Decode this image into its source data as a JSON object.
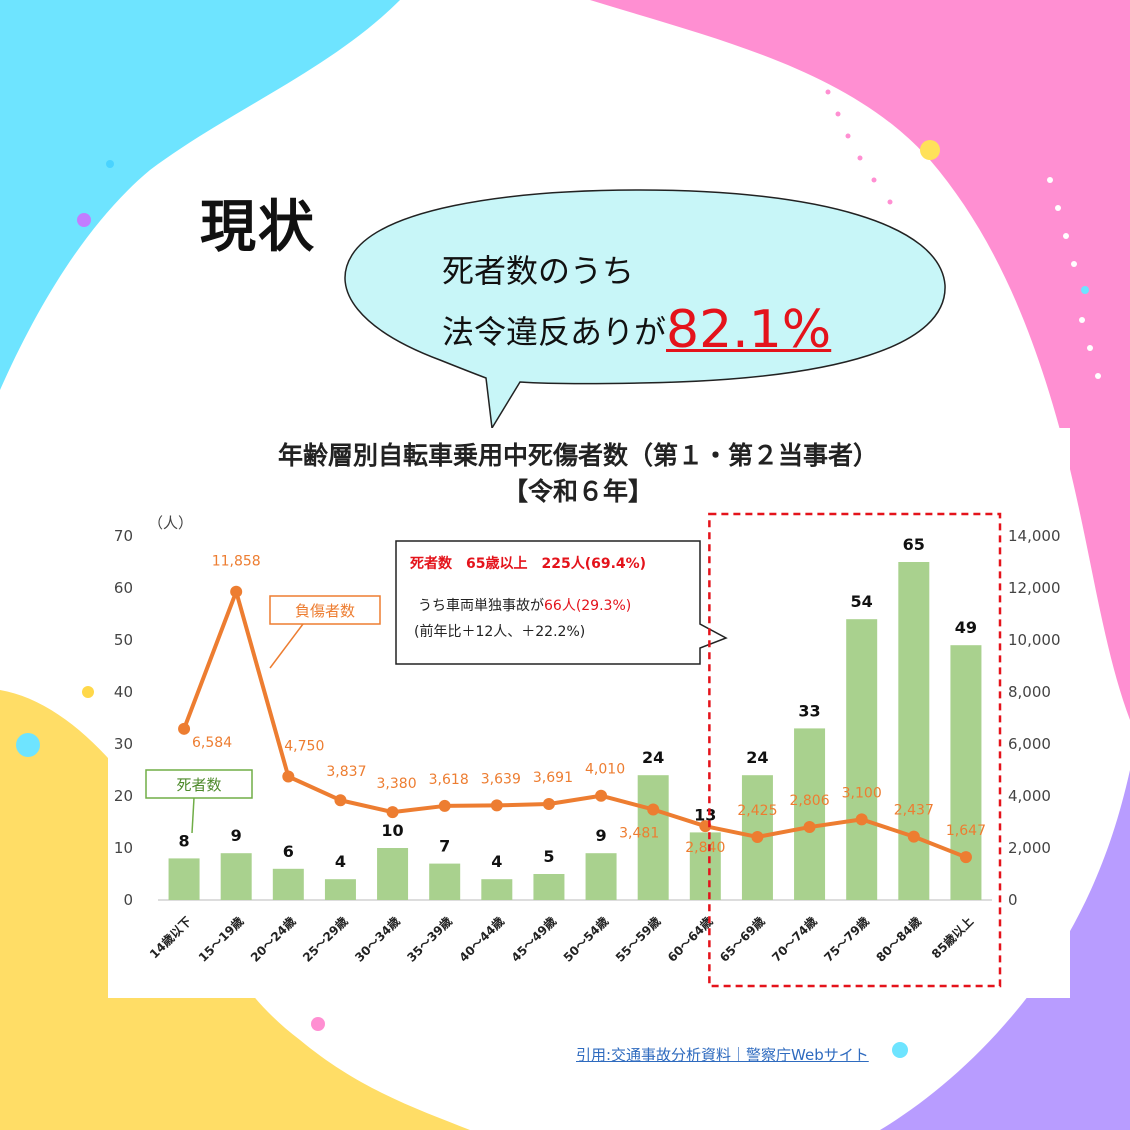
{
  "heading": "現状",
  "bubble": {
    "line1": "死者数のうち",
    "line2_prefix": "法令違反ありが",
    "line2_value": "82.1%"
  },
  "source": "引用:交通事故分析資料｜警察庁Webサイト",
  "colors": {
    "bar": "#a9d18e",
    "line": "#ed7d31",
    "highlight": "#e4131b",
    "bubble_fill": "#c8f6f8"
  },
  "chart_data": {
    "type": "bar",
    "title": "年齢層別自転車乗用中死傷者数（第１・第２当事者）",
    "subtitle": "【令和６年】",
    "ylabel": "（人）",
    "ylim": [
      0,
      70
    ],
    "y2lim": [
      0,
      14000
    ],
    "yticks": [
      "0",
      "10",
      "20",
      "30",
      "40",
      "50",
      "60",
      "70"
    ],
    "y2ticks": [
      "0",
      "2,000",
      "4,000",
      "6,000",
      "8,000",
      "10,000",
      "12,000",
      "14,000"
    ],
    "categories": [
      "14歳以下",
      "15～19歳",
      "20～24歳",
      "25～29歳",
      "30～34歳",
      "35～39歳",
      "40～44歳",
      "45～49歳",
      "50～54歳",
      "55～59歳",
      "60～64歳",
      "65～69歳",
      "70～74歳",
      "75～79歳",
      "80～84歳",
      "85歳以上"
    ],
    "series": [
      {
        "name": "死者数",
        "type": "bar",
        "axis": "left",
        "values": [
          8,
          9,
          6,
          4,
          10,
          7,
          4,
          5,
          9,
          24,
          13,
          24,
          33,
          54,
          65,
          49
        ],
        "labels": [
          "8",
          "9",
          "6",
          "4",
          "10",
          "7",
          "4",
          "5",
          "9",
          "24",
          "13",
          "24",
          "33",
          "54",
          "65",
          "49"
        ]
      },
      {
        "name": "負傷者数",
        "type": "line",
        "axis": "right",
        "values": [
          6584,
          11858,
          4750,
          3837,
          3380,
          3618,
          3639,
          3691,
          4010,
          3481,
          2840,
          2425,
          2806,
          3100,
          2437,
          1647
        ],
        "labels": [
          "6,584",
          "11,858",
          "4,750",
          "3,837",
          "3,380",
          "3,618",
          "3,639",
          "3,691",
          "4,010",
          "3,481",
          "2,840",
          "2,425",
          "2,806",
          "3,100",
          "2,437",
          "1,647"
        ]
      }
    ],
    "annotation": {
      "line1_prefix": "死者数",
      "line1_value": "65歳以上　225人(69.4%)",
      "line2_prefix": "うち車両単独事故が",
      "line2_value": "66人(29.3%)",
      "line3": "(前年比＋12人、＋22.2%)"
    },
    "highlight_range": [
      "65～69歳",
      "85歳以上"
    ],
    "legend": "inline callouts"
  }
}
